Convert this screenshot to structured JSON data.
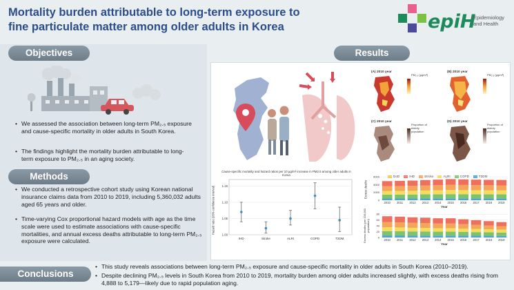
{
  "title_line1": "Mortality burden attributable to long-term exposure to",
  "title_line2": "fine particulate matter among older adults in Korea",
  "logo": {
    "word": "epiH",
    "sub1": "Epidemiology",
    "sub2": "and Health",
    "colors": [
      "#e9608d",
      "#1d8a5c",
      "#4a4a9c",
      "#7dc142"
    ]
  },
  "sections": {
    "objectives": "Objectives",
    "methods": "Methods",
    "results": "Results",
    "conclusions": "Conclusions"
  },
  "objectives": [
    "We assessed the association between long-term PM₂.₅ exposure and cause-specific mortality in older adults in South Korea.",
    "The findings highlight the mortality burden attributable to long-term exposure to PM₂.₅ in an aging society."
  ],
  "methods": [
    "We conducted a retrospective cohort study using Korean national insurance claims data from 2010 to 2019, including 5,360,032 adults aged 65 years and older.",
    "Time-varying Cox proportional hazard models with age as the time scale were used to estimate associations with cause-specific mortalities, and annual excess deaths attributable to long-term PM₂.₅ exposure were calculated."
  ],
  "conclusions": [
    "This study reveals associations between long-term PM₂.₅ exposure and cause-specific mortality in older adults in South Korea (2010–2019).",
    "Despite declining PM₂.₅ levels in South Korea from 2010 to 2019, mortality burden among older adults increased slightly, with excess deaths rising from 4,888 to 5,179—likely due to rapid population aging."
  ],
  "maps": [
    {
      "label": "(A) 2010 year",
      "legend": "PM₂.₅ (μg/m³)"
    },
    {
      "label": "(B) 2010 year",
      "legend": "PM₂.₅ (μg/m³)"
    },
    {
      "label": "(C) 2010 year",
      "legend": "Proportion of elderly population"
    },
    {
      "label": "(D) 2010 year",
      "legend": "Proportion of elderly population"
    }
  ],
  "chart_data": [
    {
      "type": "scatter",
      "title": "Cause-specific mortality and hazard ratios per 10 μg/m³ increase in PM2.5 among older adults in Korea",
      "xlabel": "",
      "ylabel": "Hazard ratio (95% confidence interval)",
      "categories": [
        "IHD",
        "Stroke",
        "ALRI",
        "COPD",
        "T2DM"
      ],
      "values": [
        1.07,
        1.02,
        1.05,
        1.12,
        1.045
      ],
      "lower": [
        1.04,
        1.005,
        1.03,
        1.08,
        1.01
      ],
      "upper": [
        1.1,
        1.04,
        1.075,
        1.16,
        1.085
      ],
      "ylim": [
        1.0,
        1.17
      ],
      "yticks": [
        "1.00",
        "1.05",
        "1.10",
        "1.15"
      ],
      "color": "#3b8fc8"
    },
    {
      "type": "bar",
      "stacked": true,
      "title": "",
      "xlabel": "Year",
      "ylabel": "Excess deaths",
      "categories": [
        "2010",
        "2011",
        "2012",
        "2013",
        "2014",
        "2015",
        "2016",
        "2017",
        "2018",
        "2019"
      ],
      "series": [
        {
          "name": "DoD",
          "color": "#f2c94c",
          "values": [
            0,
            0,
            0,
            0,
            0,
            0,
            0,
            0,
            0,
            0
          ]
        },
        {
          "name": "IHD",
          "color": "#ef6f5e",
          "values": [
            1300,
            1320,
            1340,
            1380,
            1410,
            1450,
            1420,
            1400,
            1390,
            1380
          ]
        },
        {
          "name": "Stroke",
          "color": "#f3a65a",
          "values": [
            1250,
            1260,
            1270,
            1300,
            1320,
            1350,
            1330,
            1310,
            1300,
            1290
          ]
        },
        {
          "name": "ALRI",
          "color": "#f6dc5c",
          "values": [
            900,
            920,
            940,
            980,
            1010,
            1040,
            1030,
            1020,
            1010,
            1000
          ]
        },
        {
          "name": "COPD",
          "color": "#7cc36a",
          "values": [
            1000,
            1010,
            1020,
            1040,
            1060,
            1080,
            1070,
            1060,
            1050,
            1040
          ]
        },
        {
          "name": "T2DM",
          "color": "#4ea3d9",
          "values": [
            438,
            440,
            450,
            460,
            470,
            480,
            475,
            470,
            470,
            469
          ]
        }
      ],
      "ylim": [
        0,
        6000
      ],
      "yticks": [
        "0",
        "2000",
        "4000",
        "6000"
      ]
    },
    {
      "type": "bar",
      "stacked": true,
      "title": "",
      "xlabel": "Year",
      "ylabel": "Excess deaths (per 100,000 population)",
      "categories": [
        "2010",
        "2011",
        "2012",
        "2013",
        "2014",
        "2015",
        "2016",
        "2017",
        "2018",
        "2019"
      ],
      "series": [
        {
          "name": "IHD",
          "color": "#ef6f5e",
          "values": [
            20,
            19.5,
            19,
            18.5,
            18,
            18,
            17,
            16,
            15,
            14
          ]
        },
        {
          "name": "Stroke",
          "color": "#f3a65a",
          "values": [
            18,
            17.5,
            17,
            16.5,
            16,
            16,
            15,
            14,
            13,
            12
          ]
        },
        {
          "name": "ALRI",
          "color": "#f6dc5c",
          "values": [
            13,
            13,
            12.5,
            12.5,
            12,
            12,
            11.5,
            11,
            10.5,
            10
          ]
        },
        {
          "name": "COPD",
          "color": "#7cc36a",
          "values": [
            15,
            14.5,
            14,
            14,
            13.5,
            13.5,
            13,
            12.5,
            12,
            11.5
          ]
        },
        {
          "name": "T2DM",
          "color": "#4ea3d9",
          "values": [
            7,
            7,
            6.8,
            6.6,
            6.5,
            6.5,
            6.2,
            6,
            5.8,
            5.5
          ]
        }
      ],
      "ylim": [
        0,
        90
      ],
      "yticks": [
        "0",
        "20",
        "40",
        "60",
        "80"
      ]
    }
  ],
  "legend_labels": [
    "DoD",
    "IHD",
    "Stroke",
    "ALRI",
    "COPD",
    "T2DM"
  ]
}
